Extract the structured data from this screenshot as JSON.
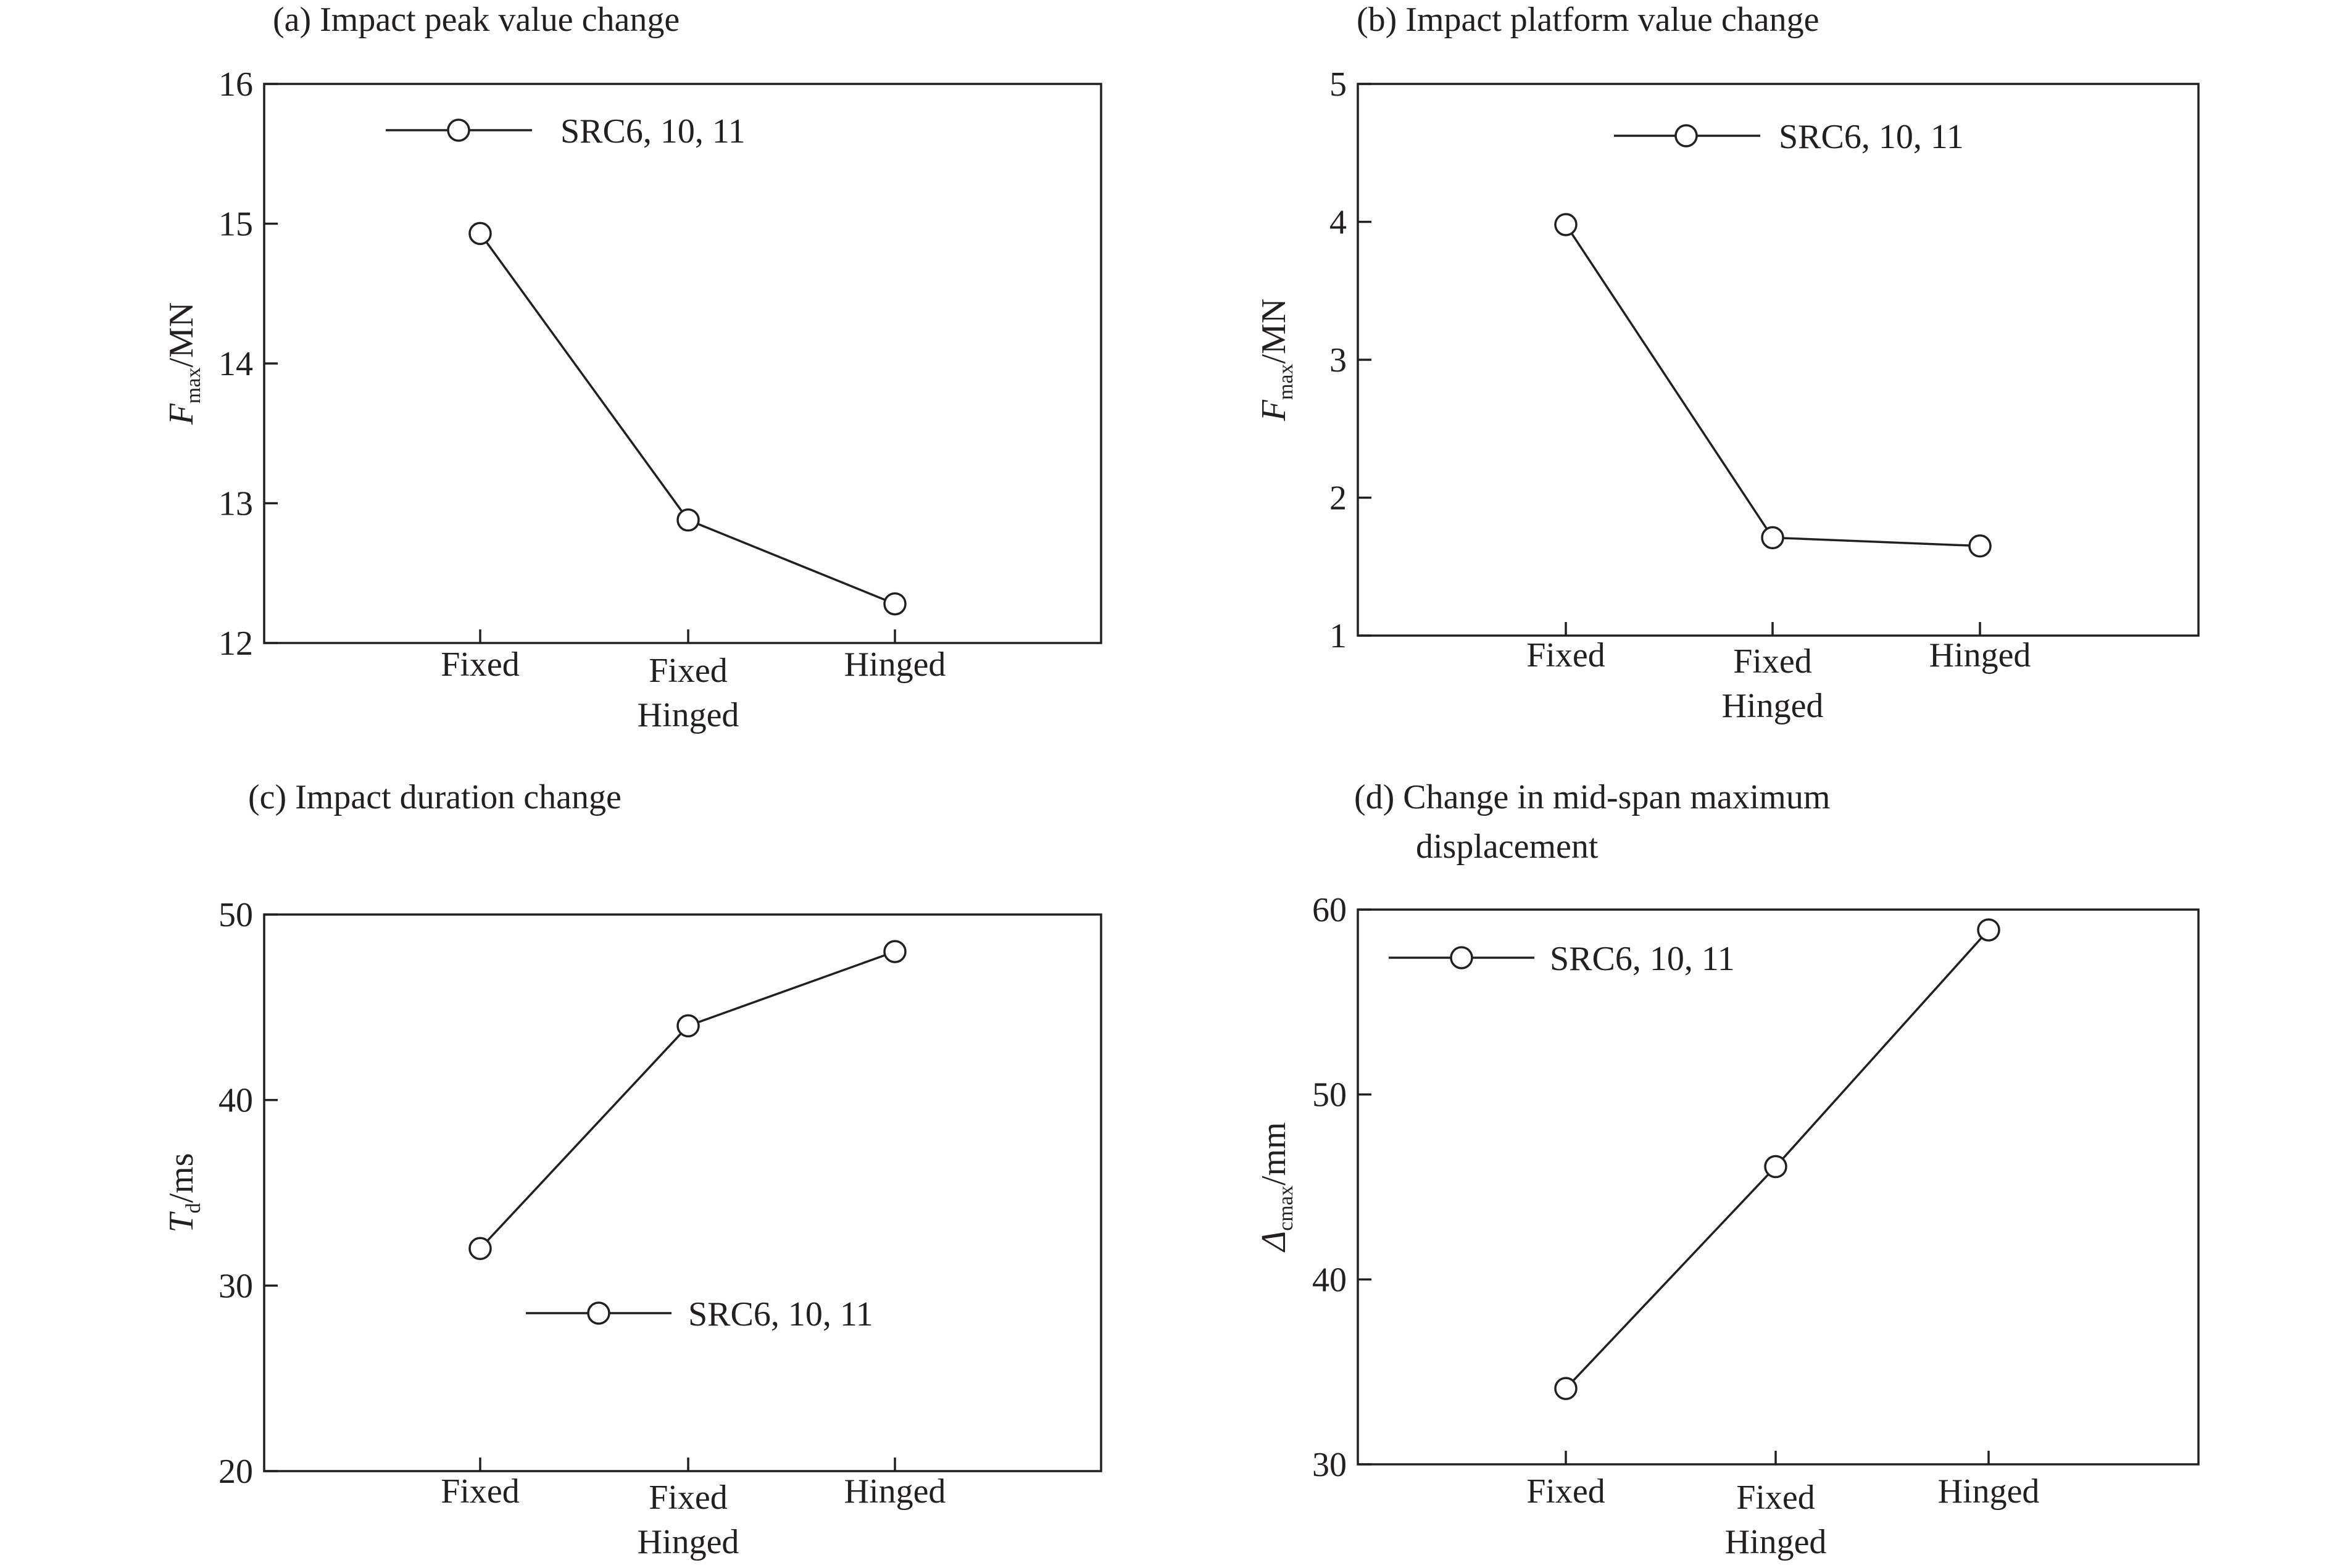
{
  "chart_data": [
    {
      "type": "line",
      "title": "(a) Impact peak value change",
      "ylabel": {
        "main": "F",
        "sub": "max",
        "unit": "/MN"
      },
      "categories": [
        {
          "lines": [
            "Fixed"
          ]
        },
        {
          "lines": [
            "Fixed",
            "Hinged"
          ]
        },
        {
          "lines": [
            "Hinged"
          ]
        }
      ],
      "ylim": [
        12,
        16
      ],
      "yticks": [
        "12",
        "13",
        "14",
        "15",
        "16"
      ],
      "grid": false,
      "legend_position": "top-left",
      "series": [
        {
          "name": "SRC6, 10, 11",
          "values": [
            14.93,
            12.88,
            12.28
          ]
        }
      ]
    },
    {
      "type": "line",
      "title": "(b) Impact platform value change",
      "ylabel": {
        "main": "F",
        "sub": "max",
        "unit": "/MN"
      },
      "categories": [
        {
          "lines": [
            "Fixed"
          ]
        },
        {
          "lines": [
            "Fixed",
            "Hinged"
          ]
        },
        {
          "lines": [
            "Hinged"
          ]
        }
      ],
      "ylim": [
        1,
        5
      ],
      "yticks": [
        "1",
        "2",
        "3",
        "4",
        "5"
      ],
      "grid": false,
      "legend_position": "top-right",
      "series": [
        {
          "name": "SRC6, 10, 11",
          "values": [
            3.98,
            1.71,
            1.65
          ]
        }
      ]
    },
    {
      "type": "line",
      "title": "(c) Impact duration change",
      "ylabel": {
        "main": "T",
        "sub": "d",
        "unit": "/ms"
      },
      "categories": [
        {
          "lines": [
            "Fixed"
          ]
        },
        {
          "lines": [
            "Fixed",
            "Hinged"
          ]
        },
        {
          "lines": [
            "Hinged"
          ]
        }
      ],
      "ylim": [
        20,
        50
      ],
      "yticks": [
        "20",
        "30",
        "40",
        "50"
      ],
      "grid": false,
      "legend_position": "bottom-center",
      "series": [
        {
          "name": "SRC6, 10, 11",
          "values": [
            32,
            44,
            48
          ]
        }
      ]
    },
    {
      "type": "line",
      "title": "(d) Change in mid-span maximum displacement",
      "title_lines": [
        "(d) Change in mid-span maximum",
        "displacement"
      ],
      "ylabel": {
        "main": "Δ",
        "sub": "cmax",
        "unit": "/mm"
      },
      "categories": [
        {
          "lines": [
            "Fixed"
          ]
        },
        {
          "lines": [
            "Fixed",
            "Hinged"
          ]
        },
        {
          "lines": [
            "Hinged"
          ]
        }
      ],
      "ylim": [
        30,
        60
      ],
      "yticks": [
        "30",
        "40",
        "50",
        "60"
      ],
      "grid": false,
      "legend_position": "top-left",
      "series": [
        {
          "name": "SRC6, 10, 11",
          "values": [
            34.1,
            46.1,
            58.9
          ]
        }
      ]
    }
  ],
  "colors": {
    "ink": "#231f20",
    "marker_fill": "#ffffff",
    "background": "#ffffff"
  }
}
